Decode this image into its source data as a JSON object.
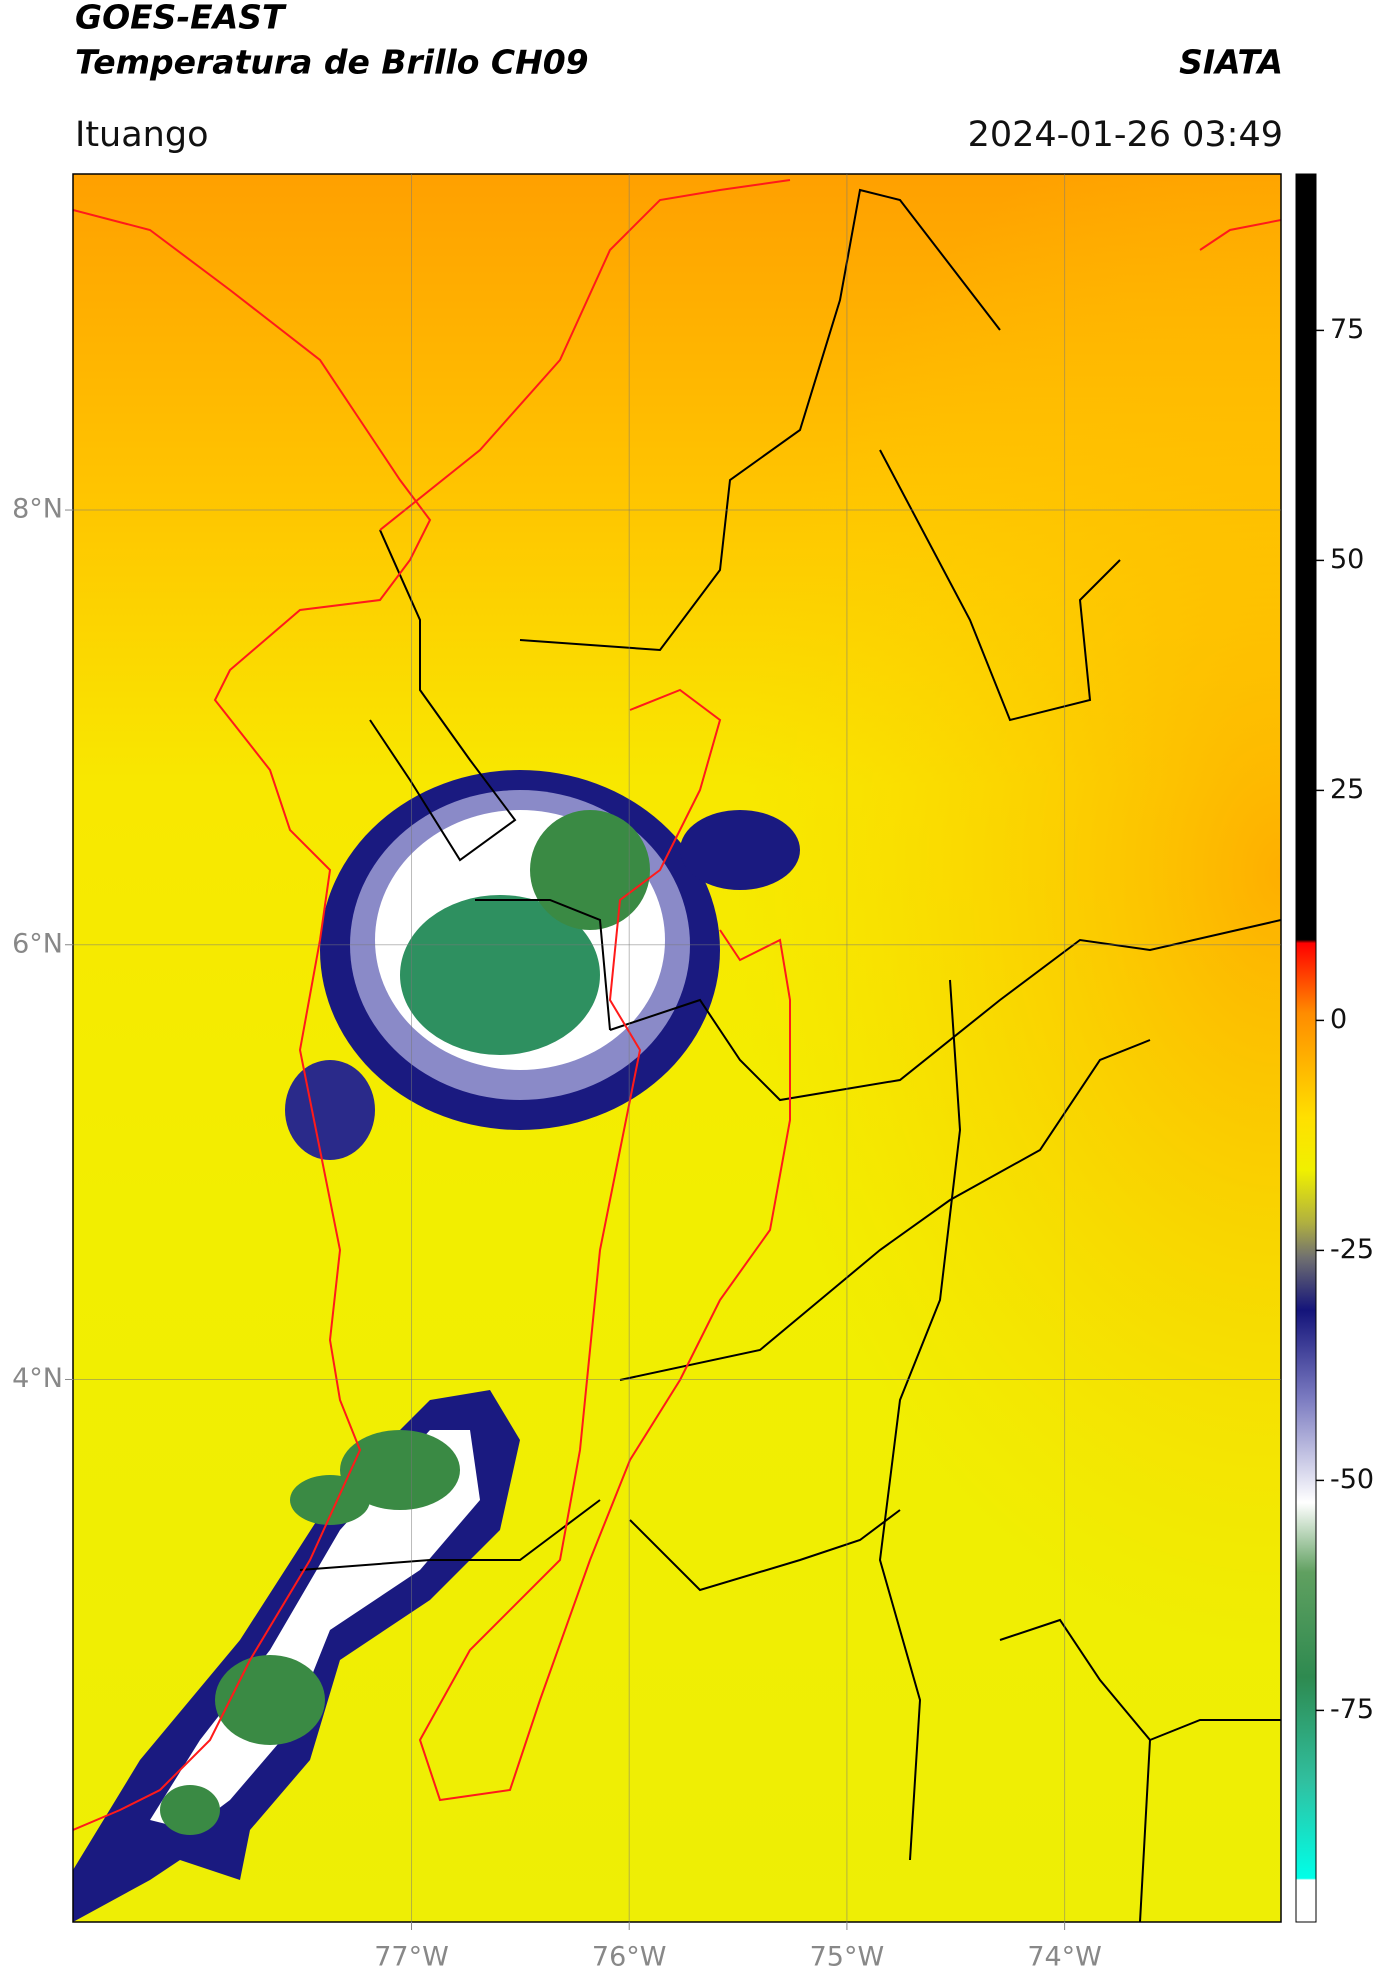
{
  "header": {
    "title": "GOES-EAST",
    "subtitle": "Temperatura de Brillo CH09",
    "brand": "SIATA",
    "location": "Ituango",
    "datetime": "2024-01-26 03:49"
  },
  "map": {
    "xlim": [
      -78.555,
      -73.006
    ],
    "ylim": [
      1.504,
      9.546
    ],
    "xticks": [
      {
        "value": -77,
        "label": "77°W"
      },
      {
        "value": -76,
        "label": "76°W"
      },
      {
        "value": -75,
        "label": "75°W"
      },
      {
        "value": -74,
        "label": "74°W"
      }
    ],
    "yticks": [
      {
        "value": 8,
        "label": "8°N"
      },
      {
        "value": 6,
        "label": "6°N"
      },
      {
        "value": 4,
        "label": "4°N"
      }
    ],
    "grid": true
  },
  "colorbar": {
    "lim": [
      -98,
      92
    ],
    "ticks": [
      75,
      50,
      25,
      0,
      -25,
      -50,
      -75
    ]
  }
}
